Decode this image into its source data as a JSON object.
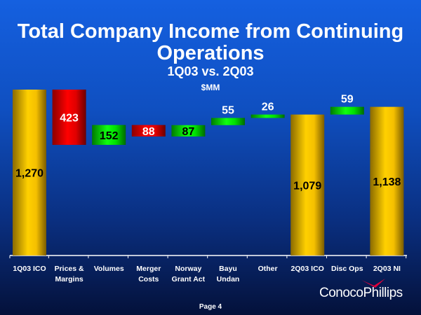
{
  "chart_data": {
    "type": "waterfall",
    "title": "Total Company Income from Continuing Operations",
    "subtitle": "1Q03 vs. 2Q03",
    "unit_label": "$MM",
    "categories": [
      "1Q03 ICO",
      "Prices & Margins",
      "Volumes",
      "Merger Costs",
      "Norway Grant Act",
      "Bayu Undan",
      "Other",
      "2Q03 ICO",
      "Disc Ops",
      "2Q03 NI"
    ],
    "values": [
      1270,
      -423,
      152,
      -88,
      87,
      55,
      26,
      1079,
      59,
      1138
    ],
    "kinds": [
      "total",
      "delta",
      "delta",
      "delta",
      "delta",
      "delta",
      "delta",
      "total",
      "delta",
      "total"
    ],
    "data_labels": [
      "1,270",
      "423",
      "152",
      "88",
      "87",
      "55",
      "26",
      "1,079",
      "59",
      "1,138"
    ],
    "ylim": [
      0,
      1300
    ],
    "grid": false,
    "colors": {
      "total": "#f5c400",
      "increase": "#00e000",
      "decrease": "#e00000"
    }
  },
  "footer": {
    "page": "Page 4",
    "logo": "ConocoPhillips"
  }
}
